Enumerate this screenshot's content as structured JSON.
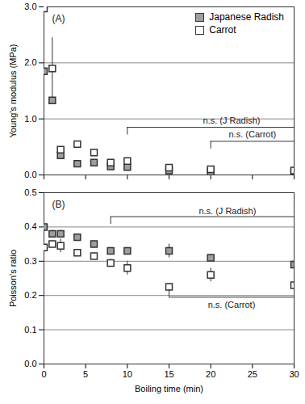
{
  "chart_data": [
    {
      "type": "scatter",
      "title": "(A)",
      "y_label": "Young's modulus (MPa)",
      "x": [
        0,
        1,
        2,
        4,
        6,
        8,
        10,
        15,
        20,
        30
      ],
      "series": [
        {
          "name": "Japanese Radish",
          "color": "#9e9e9e",
          "marker": "square",
          "values": [
            1.85,
            1.33,
            0.35,
            0.2,
            0.22,
            0.15,
            0.14,
            0.08,
            0.05,
            0.06
          ],
          "errors": [
            0.07,
            0.05,
            0.07,
            0.02,
            0.02,
            0.02,
            0.02,
            0.01,
            0.01,
            0.01
          ]
        },
        {
          "name": "Carrot",
          "color": "#ffffff",
          "marker": "square",
          "values": [
            2.97,
            1.9,
            0.45,
            0.55,
            0.4,
            0.22,
            0.25,
            0.13,
            0.1,
            0.08
          ],
          "errors": [
            0.1,
            0.55,
            0.05,
            0.02,
            0.02,
            0.02,
            0.05,
            0.02,
            0.02,
            0.02
          ]
        }
      ],
      "xlim": [
        0,
        30
      ],
      "xticks": [
        0,
        5,
        10,
        15,
        20,
        25,
        30
      ],
      "ylim": [
        0,
        3
      ],
      "yticks": [
        {
          "value": 0,
          "label": "0.0"
        },
        {
          "value": 1,
          "label": "1.0"
        },
        {
          "value": 2,
          "label": "2.0"
        },
        {
          "value": 3,
          "label": "3.0"
        }
      ],
      "grid": true,
      "legend": "top-right",
      "tick_labels": "y",
      "annotations": [
        {
          "text": "n.s. (J Radish)",
          "x": 22.5,
          "y": 0.97,
          "bracket": [
            10,
            30
          ],
          "bracket_y": 0.85
        },
        {
          "text": "n.s. (Carrot)",
          "x": 25,
          "y": 0.72,
          "bracket": [
            20,
            30
          ],
          "bracket_y": 0.6
        }
      ]
    },
    {
      "type": "scatter",
      "title": "(B)",
      "x_label": "Boiling time (min)",
      "y_label": "Poisson's ratio",
      "x": [
        0,
        1,
        2,
        4,
        6,
        8,
        10,
        15,
        20,
        30
      ],
      "series": [
        {
          "name": "Japanese Radish",
          "color": "#9e9e9e",
          "marker": "square",
          "values": [
            0.4,
            0.38,
            0.38,
            0.37,
            0.35,
            0.33,
            0.33,
            0.33,
            0.31,
            0.29
          ],
          "errors": [
            0.03,
            0.01,
            0.01,
            0.01,
            0.01,
            0.01,
            0.01,
            0.02,
            0.01,
            0.02
          ]
        },
        {
          "name": "Carrot",
          "color": "#ffffff",
          "marker": "square",
          "values": [
            0.34,
            0.35,
            0.345,
            0.325,
            0.315,
            0.295,
            0.28,
            0.225,
            0.26,
            0.23
          ],
          "errors": [
            0.03,
            0.01,
            0.02,
            0.01,
            0.01,
            0.01,
            0.02,
            0.01,
            0.02,
            0.02
          ]
        }
      ],
      "xlim": [
        0,
        30
      ],
      "xticks": [
        0,
        5,
        10,
        15,
        20,
        25,
        30
      ],
      "ylim": [
        0,
        0.5
      ],
      "yticks": [
        {
          "value": 0,
          "label": "0.0"
        },
        {
          "value": 0.1,
          "label": "0.1"
        },
        {
          "value": 0.2,
          "label": "0.2"
        },
        {
          "value": 0.3,
          "label": "0.3"
        },
        {
          "value": 0.4,
          "label": "0.4"
        },
        {
          "value": 0.5,
          "label": "0.5"
        }
      ],
      "grid": true,
      "annotations": [
        {
          "text": "n.s. (J Radish)",
          "x": 22,
          "y": 0.447,
          "bracket": [
            8,
            30
          ],
          "bracket_y": 0.43
        },
        {
          "text": "n.s. (Carrot)",
          "x": 22.5,
          "y": 0.172,
          "bracket": [
            15,
            30
          ],
          "bracket_y": 0.195
        }
      ]
    }
  ]
}
